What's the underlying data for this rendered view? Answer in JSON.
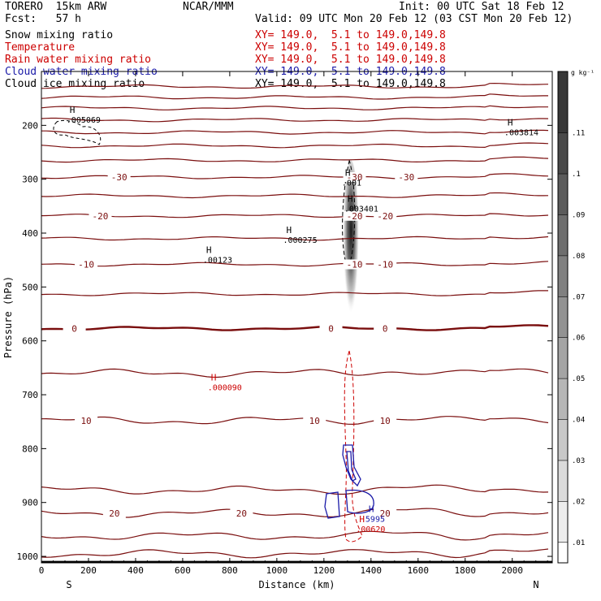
{
  "header": {
    "model": "TORERO  15km ARW",
    "center": "NCAR/MMM",
    "init": "Init: 00 UTC Sat 18 Feb 12",
    "fcst": "Fcst:   57 h",
    "valid": "Valid: 09 UTC Mon 20 Feb 12 (03 CST Mon 20 Feb 12)"
  },
  "fields": [
    {
      "name": "Snow mixing ratio",
      "xy": "XY= 149.0,  5.1 to 149.0,149.8",
      "color": "#000000"
    },
    {
      "name": "Temperature",
      "xy": "XY= 149.0,  5.1 to 149.0,149.8",
      "color": "#cc0000"
    },
    {
      "name": "Rain water mixing ratio",
      "xy": "XY= 149.0,  5.1 to 149.0,149.8",
      "color": "#cc0000"
    },
    {
      "name": "Cloud water mixing ratio",
      "xy": "XY= 149.0,  5.1 to 149.0,149.8",
      "color": "#1a1aa8"
    },
    {
      "name": "Cloud ice mixing ratio",
      "xy": "XY= 149.0,  5.1 to 149.0,149.8",
      "color": "#000000"
    }
  ],
  "chart_data": {
    "type": "contour cross-section",
    "xlabel": "Distance (km)",
    "ylabel": "Pressure (hPa)",
    "xlim": [
      0,
      2170
    ],
    "ylim": [
      1015,
      100
    ],
    "x_ticks": [
      0,
      200,
      400,
      600,
      800,
      1000,
      1200,
      1400,
      1600,
      1800,
      2000
    ],
    "y_ticks": [
      200,
      300,
      400,
      500,
      600,
      700,
      800,
      900,
      1000
    ],
    "x_end_labels": {
      "left": "S",
      "right": "N"
    },
    "shading_variable": "Snow mixing ratio",
    "colorbar": {
      "unit": "g kg⁻¹",
      "levels": [
        0.01,
        0.02,
        0.03,
        0.04,
        0.05,
        0.06,
        0.07,
        0.08,
        0.09,
        0.1,
        0.11
      ],
      "tick_labels": [
        ".01",
        ".02",
        ".03",
        ".04",
        ".05",
        ".06",
        ".07",
        ".08",
        ".09",
        ".1",
        ".11"
      ],
      "range": [
        0.005,
        0.125
      ]
    },
    "snow_maximum": {
      "x": 1315,
      "p_center": 410,
      "p_top": 265,
      "p_bottom": 575,
      "value_max": 0.12
    },
    "temperature_contours_C": [
      {
        "value": 30,
        "p": 995,
        "labels": []
      },
      {
        "value": 25,
        "p": 962,
        "labels": []
      },
      {
        "value": 20,
        "p": 920,
        "labels": [
          {
            "x": 310,
            "text": "20"
          },
          {
            "x": 850,
            "text": "20"
          },
          {
            "x": 1460,
            "text": "20"
          }
        ]
      },
      {
        "value": 15,
        "p": 877,
        "labels": []
      },
      {
        "value": 10,
        "p": 748,
        "labels": [
          {
            "x": 190,
            "text": "10"
          },
          {
            "x": 1160,
            "text": "10"
          },
          {
            "x": 1460,
            "text": "10"
          }
        ]
      },
      {
        "value": 5,
        "p": 660,
        "labels": []
      },
      {
        "value": 0,
        "p": 577,
        "labels": [
          {
            "x": 140,
            "text": "0"
          },
          {
            "x": 1230,
            "text": "0"
          },
          {
            "x": 1460,
            "text": "0"
          }
        ]
      },
      {
        "value": -5,
        "p": 513,
        "labels": []
      },
      {
        "value": -10,
        "p": 458,
        "labels": [
          {
            "x": 190,
            "text": "-10"
          },
          {
            "x": 1330,
            "text": "-10"
          },
          {
            "x": 1460,
            "text": "-10"
          }
        ]
      },
      {
        "value": -15,
        "p": 410,
        "labels": []
      },
      {
        "value": -20,
        "p": 368,
        "labels": [
          {
            "x": 250,
            "text": "-20"
          },
          {
            "x": 1330,
            "text": "-20"
          },
          {
            "x": 1460,
            "text": "-20"
          }
        ]
      },
      {
        "value": -25,
        "p": 331,
        "labels": []
      },
      {
        "value": -30,
        "p": 296,
        "labels": [
          {
            "x": 330,
            "text": "-30"
          },
          {
            "x": 1330,
            "text": "-30"
          },
          {
            "x": 1550,
            "text": "-30"
          }
        ]
      },
      {
        "value": -35,
        "p": 265,
        "labels": []
      },
      {
        "value": -40,
        "p": 238,
        "labels": []
      },
      {
        "value": -45,
        "p": 213,
        "labels": []
      },
      {
        "value": -50,
        "p": 190,
        "labels": []
      },
      {
        "value": -55,
        "p": 168,
        "labels": []
      },
      {
        "value": -60,
        "p": 148,
        "labels": []
      },
      {
        "value": -65,
        "p": 128,
        "labels": []
      }
    ],
    "maxima": [
      {
        "x": 120,
        "p": 195,
        "label": ".005069",
        "color": "#000000"
      },
      {
        "x": 1980,
        "p": 218,
        "label": ".003814",
        "color": "#000000"
      },
      {
        "x": 1290,
        "p": 312,
        "label": ".001",
        "color": "#000000"
      },
      {
        "x": 1300,
        "p": 360,
        "label": ".003401",
        "color": "#000000"
      },
      {
        "x": 1040,
        "p": 418,
        "label": ".000275",
        "color": "#000000"
      },
      {
        "x": 700,
        "p": 455,
        "label": ".00123",
        "color": "#000000"
      },
      {
        "x": 720,
        "p": 692,
        "label": ".000090",
        "color": "#cc0000"
      },
      {
        "x": 1390,
        "p": 936,
        "label": "5995",
        "color": "#1a1aa8"
      },
      {
        "x": 1350,
        "p": 955,
        "label": ".00620",
        "color": "#cc0000"
      }
    ]
  }
}
